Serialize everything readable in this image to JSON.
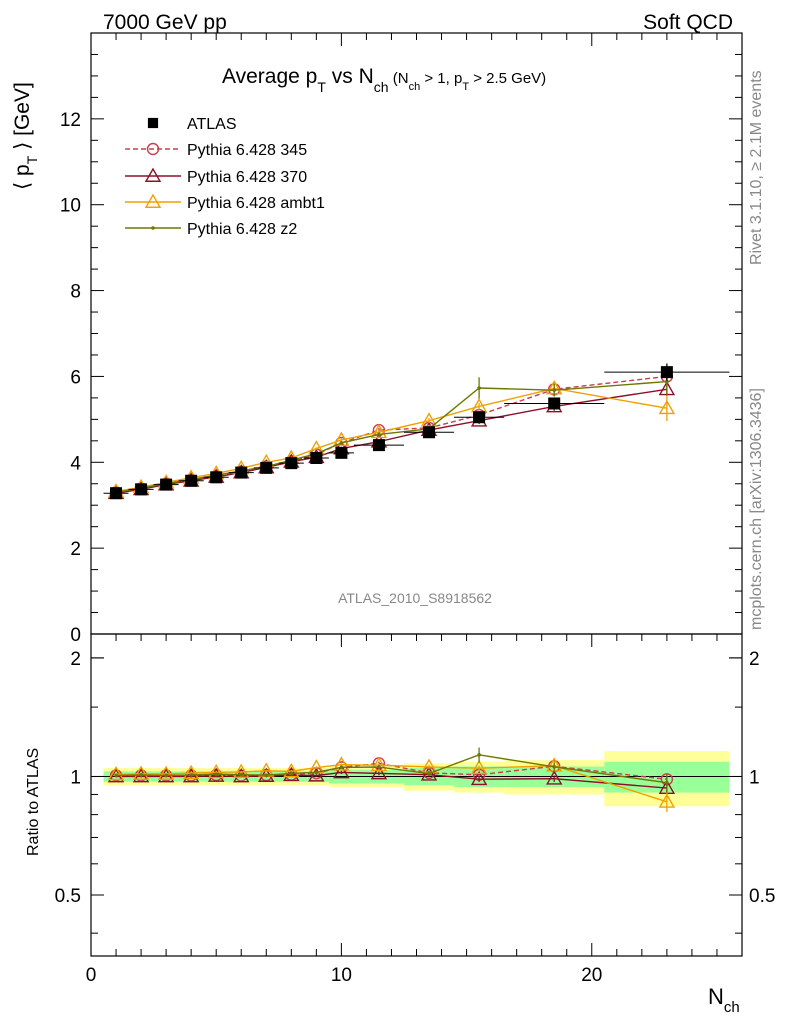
{
  "header": {
    "left": "7000 GeV pp",
    "right": "Soft QCD"
  },
  "side_labels": {
    "rivet": "Rivet 3.1.10, ≥ 2.1M events",
    "mcplots": "mcplots.cern.ch [arXiv:1306.3436]"
  },
  "chart_data": {
    "type": "scatter",
    "title": "Average p_T vs N_ch (N_ch > 1, p_T > 2.5 GeV)",
    "title_main": "Average p",
    "title_main_sub": "T",
    "title_vs": " vs N",
    "title_vs_sub": "ch",
    "title_cuts_open": " (N",
    "title_cuts_sub1": "ch",
    "title_cuts_mid": " > 1, p",
    "title_cuts_sub2": "T",
    "title_cuts_close": " > 2.5 GeV)",
    "watermark": "ATLAS_2010_S8918562",
    "ylabel": "⟨ p_T ⟩ [GeV]",
    "ylabel_main": "⟨ p",
    "ylabel_sub": "T",
    "ylabel_close": " ⟩  [GeV]",
    "xlabel": "N_ch",
    "xlabel_main": "N",
    "xlabel_sub": "ch",
    "ratio_ylabel": "Ratio to ATLAS",
    "xlim": [
      0,
      26
    ],
    "ylim": [
      0,
      14
    ],
    "ratio_ylim": [
      0.35,
      2.3
    ],
    "x_ticks": [
      "0",
      "10",
      "20"
    ],
    "y_ticks": [
      "0",
      "2",
      "4",
      "6",
      "8",
      "10",
      "12"
    ],
    "ratio_ticks": [
      "0.5",
      "1",
      "2"
    ],
    "legend_position": "top-left",
    "x_bins": [
      [
        0.5,
        1.5
      ],
      [
        1.5,
        2.5
      ],
      [
        2.5,
        3.5
      ],
      [
        3.5,
        4.5
      ],
      [
        4.5,
        5.5
      ],
      [
        5.5,
        6.5
      ],
      [
        6.5,
        7.5
      ],
      [
        7.5,
        8.5
      ],
      [
        8.5,
        9.5
      ],
      [
        9.5,
        10.5
      ],
      [
        10.5,
        12.5
      ],
      [
        12.5,
        14.5
      ],
      [
        14.5,
        16.5
      ],
      [
        16.5,
        20.5
      ],
      [
        20.5,
        25.5
      ]
    ],
    "x": [
      1,
      2,
      3,
      4,
      5,
      6,
      7,
      8,
      9,
      10,
      11.5,
      13.5,
      15.5,
      18.5,
      23
    ],
    "data": {
      "name": "ATLAS",
      "values": [
        3.28,
        3.37,
        3.48,
        3.57,
        3.65,
        3.76,
        3.87,
        3.98,
        4.1,
        4.22,
        4.4,
        4.7,
        5.05,
        5.37,
        6.1
      ],
      "errors": [
        0.03,
        0.03,
        0.03,
        0.03,
        0.03,
        0.04,
        0.04,
        0.05,
        0.05,
        0.06,
        0.06,
        0.07,
        0.1,
        0.12,
        0.2
      ],
      "band_inner": [
        0.03,
        0.03,
        0.03,
        0.03,
        0.03,
        0.03,
        0.03,
        0.03,
        0.03,
        0.04,
        0.04,
        0.05,
        0.06,
        0.06,
        0.09
      ],
      "band_outer": [
        0.05,
        0.05,
        0.05,
        0.05,
        0.05,
        0.05,
        0.05,
        0.05,
        0.05,
        0.06,
        0.06,
        0.08,
        0.09,
        0.1,
        0.16
      ],
      "color": "#000000"
    },
    "series": [
      {
        "name": "Pythia 6.428 345",
        "color": "#c83c50",
        "marker": "circle",
        "dashed": true,
        "values": [
          3.3,
          3.39,
          3.5,
          3.59,
          3.68,
          3.78,
          3.9,
          4.02,
          4.18,
          4.45,
          4.75,
          4.8,
          5.1,
          5.7,
          6.0
        ],
        "errors": [
          0.02,
          0.02,
          0.02,
          0.02,
          0.02,
          0.02,
          0.03,
          0.03,
          0.03,
          0.04,
          0.05,
          0.06,
          0.08,
          0.1,
          0.15
        ]
      },
      {
        "name": "Pythia 6.428 370",
        "color": "#8c1028",
        "marker": "triangle",
        "dashed": false,
        "values": [
          3.28,
          3.37,
          3.48,
          3.57,
          3.66,
          3.76,
          3.88,
          4.01,
          4.12,
          4.32,
          4.48,
          4.75,
          4.97,
          5.3,
          5.7
        ],
        "errors": [
          0.02,
          0.02,
          0.02,
          0.02,
          0.02,
          0.02,
          0.03,
          0.03,
          0.03,
          0.04,
          0.05,
          0.06,
          0.08,
          0.1,
          0.15
        ]
      },
      {
        "name": "Pythia 6.428 ambt1",
        "color": "#f0a000",
        "marker": "triangle",
        "dashed": false,
        "values": [
          3.32,
          3.42,
          3.53,
          3.64,
          3.74,
          3.86,
          4.0,
          4.1,
          4.32,
          4.52,
          4.7,
          4.97,
          5.3,
          5.72,
          5.26
        ],
        "errors": [
          0.02,
          0.02,
          0.02,
          0.02,
          0.02,
          0.02,
          0.03,
          0.03,
          0.03,
          0.04,
          0.05,
          0.06,
          0.08,
          0.15,
          0.3
        ]
      },
      {
        "name": "Pythia 6.428 z2",
        "color": "#6e7800",
        "marker": "dot",
        "dashed": false,
        "values": [
          3.3,
          3.4,
          3.5,
          3.6,
          3.7,
          3.8,
          3.9,
          4.05,
          4.2,
          4.45,
          4.65,
          4.78,
          5.73,
          5.68,
          5.88
        ],
        "errors": [
          0.02,
          0.02,
          0.02,
          0.02,
          0.02,
          0.02,
          0.03,
          0.03,
          0.03,
          0.04,
          0.05,
          0.06,
          0.25,
          0.15,
          0.3
        ]
      }
    ]
  }
}
